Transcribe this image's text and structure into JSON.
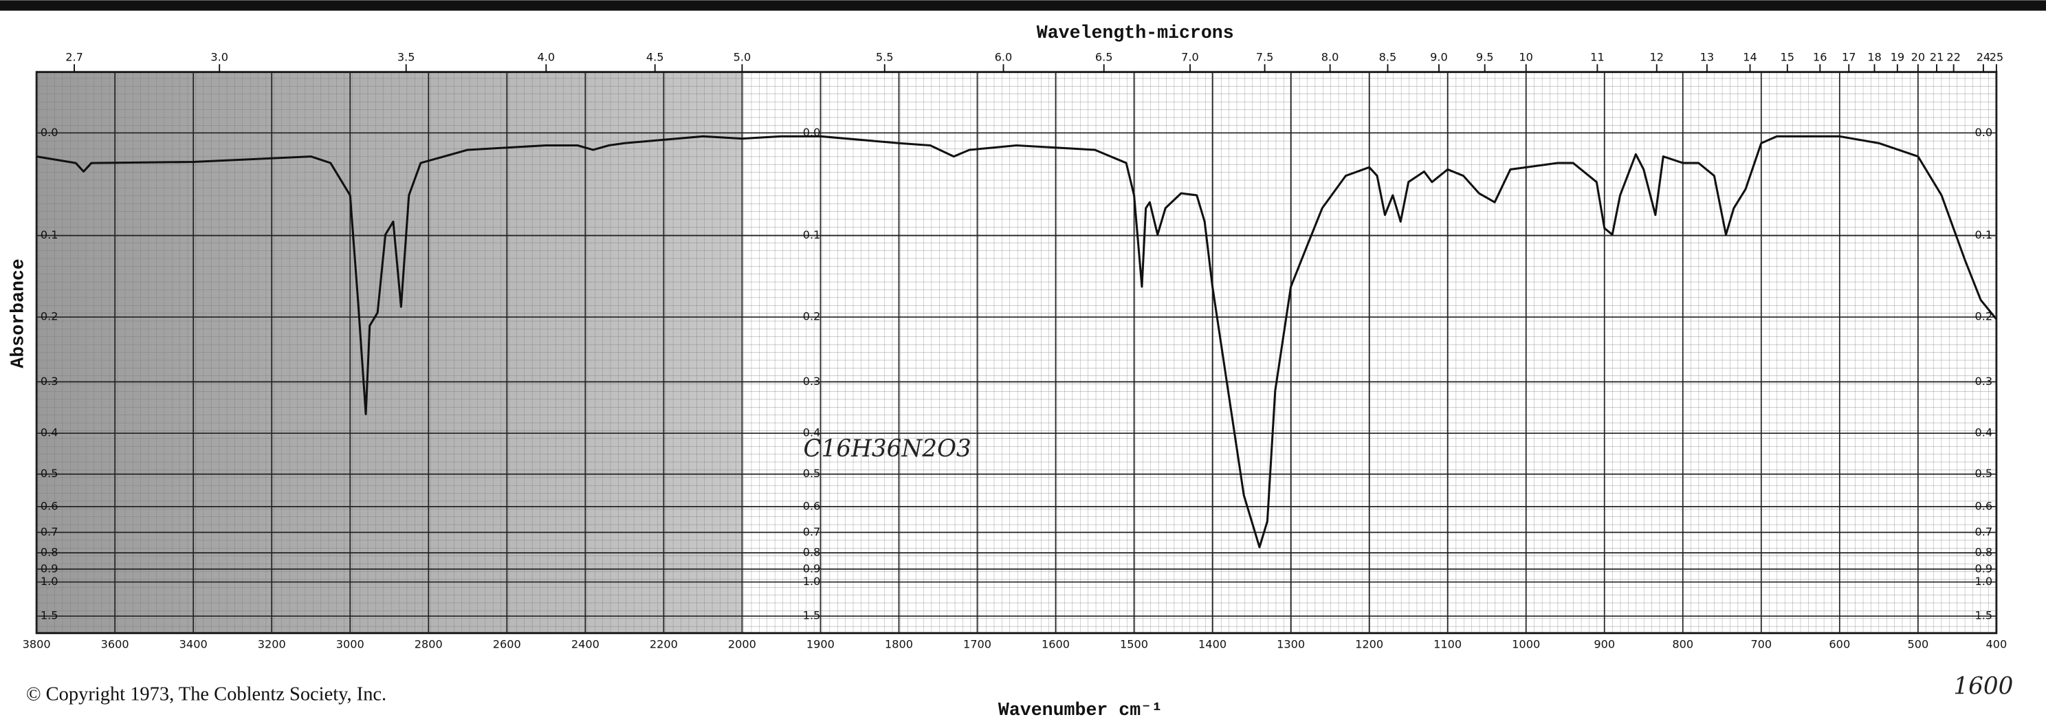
{
  "chart_data": {
    "type": "line",
    "title": "Wavelength-microns",
    "xlabel": "Wavenumber cm⁻¹",
    "ylabel": "Absorbance",
    "annotations": [
      "© Copyright 1973, The Coblentz Society, Inc.",
      "C16H36N2O3",
      "1600"
    ],
    "color": "#111111",
    "xlim": [
      3800,
      400
    ],
    "xbreak": 2000,
    "xticks": [
      3800,
      3600,
      3400,
      3200,
      3000,
      2800,
      2600,
      2400,
      2200,
      2000,
      1900,
      1800,
      1700,
      1600,
      1500,
      1400,
      1300,
      1200,
      1100,
      1000,
      900,
      800,
      700,
      600,
      500,
      400
    ],
    "x2scale": "reciprocal",
    "x2ticks": [
      2.7,
      {
        "value": 3,
        "label": "3.0"
      },
      3.5,
      {
        "value": 4,
        "label": "4.0"
      },
      4.5,
      {
        "value": 5,
        "label": "5.0"
      },
      5.5,
      {
        "value": 6,
        "label": "6.0"
      },
      6.5,
      {
        "value": 7,
        "label": "7.0"
      },
      7.5,
      {
        "value": 8,
        "label": "8.0"
      },
      8.5,
      {
        "value": 9,
        "label": "9.0"
      },
      9.5,
      10,
      11,
      12,
      13,
      14,
      15,
      16,
      17,
      18,
      19,
      20,
      21,
      22,
      24,
      25
    ],
    "yscale": "transmittance",
    "ylim": [
      -0.05,
      1.5
    ],
    "yticks": [
      {
        "value": 0,
        "label": "0.0"
      },
      0.1,
      0.2,
      0.3,
      0.4,
      0.5,
      0.6,
      0.7,
      0.8,
      0.9,
      {
        "value": 1,
        "label": "1.0"
      },
      1.5
    ],
    "grid": true,
    "x": [
      3800,
      3700,
      3680,
      3660,
      3400,
      3100,
      3050,
      3000,
      2980,
      2960,
      2950,
      2930,
      2910,
      2890,
      2870,
      2850,
      2820,
      2700,
      2500,
      2420,
      2380,
      2340,
      2300,
      2100,
      2000,
      1950,
      1900,
      1800,
      1760,
      1730,
      1710,
      1650,
      1550,
      1510,
      1500,
      1490,
      1485,
      1480,
      1470,
      1460,
      1440,
      1420,
      1410,
      1400,
      1380,
      1360,
      1340,
      1330,
      1320,
      1300,
      1280,
      1260,
      1230,
      1200,
      1190,
      1180,
      1170,
      1160,
      1150,
      1130,
      1120,
      1100,
      1080,
      1060,
      1040,
      1020,
      1000,
      960,
      940,
      910,
      900,
      890,
      880,
      860,
      850,
      835,
      825,
      800,
      780,
      760,
      745,
      735,
      720,
      700,
      680,
      650,
      600,
      550,
      500,
      470,
      440,
      420,
      400
    ],
    "values": [
      0.021,
      0.027,
      0.035,
      0.027,
      0.026,
      0.021,
      0.027,
      0.058,
      0.177,
      0.36,
      0.212,
      0.194,
      0.099,
      0.085,
      0.186,
      0.058,
      0.027,
      0.015,
      0.011,
      0.011,
      0.015,
      0.011,
      0.009,
      0.003,
      0.005,
      0.003,
      0.003,
      0.009,
      0.011,
      0.021,
      0.015,
      0.011,
      0.015,
      0.027,
      0.058,
      0.16,
      0.071,
      0.065,
      0.099,
      0.071,
      0.056,
      0.058,
      0.085,
      0.16,
      0.316,
      0.562,
      0.77,
      0.654,
      0.316,
      0.16,
      0.113,
      0.071,
      0.039,
      0.031,
      0.039,
      0.078,
      0.058,
      0.085,
      0.045,
      0.035,
      0.045,
      0.033,
      0.039,
      0.056,
      0.065,
      0.033,
      0.031,
      0.027,
      0.027,
      0.045,
      0.092,
      0.099,
      0.058,
      0.019,
      0.033,
      0.078,
      0.021,
      0.027,
      0.027,
      0.039,
      0.099,
      0.071,
      0.052,
      0.009,
      0.003,
      0.003,
      0.003,
      0.009,
      0.021,
      0.058,
      0.128,
      0.177,
      0.203
    ]
  }
}
